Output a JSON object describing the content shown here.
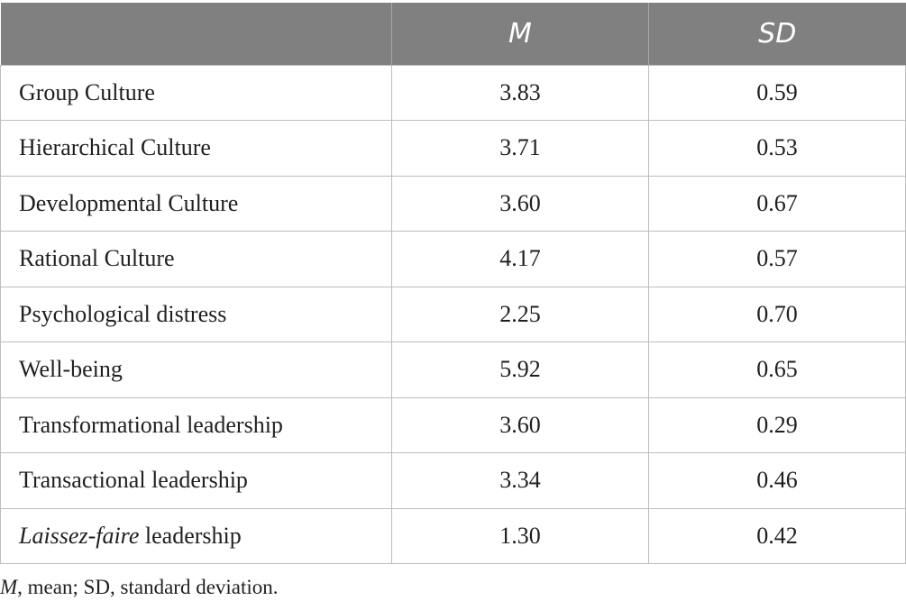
{
  "table": {
    "headers": [
      "",
      "M",
      "SD"
    ],
    "rows": [
      {
        "label": "Group Culture",
        "m": "3.83",
        "sd": "0.59"
      },
      {
        "label": "Hierarchical Culture",
        "m": "3.71",
        "sd": "0.53"
      },
      {
        "label": "Developmental Culture",
        "m": "3.60",
        "sd": "0.67"
      },
      {
        "label": "Rational Culture",
        "m": "4.17",
        "sd": "0.57"
      },
      {
        "label": "Psychological distress",
        "m": "2.25",
        "sd": "0.70"
      },
      {
        "label": "Well-being",
        "m": "5.92",
        "sd": "0.65"
      },
      {
        "label": "Transformational leadership",
        "m": "3.60",
        "sd": "0.29"
      },
      {
        "label": "Transactional leadership",
        "m": "3.34",
        "sd": "0.46"
      },
      {
        "label_italic": "Laissez-faire",
        "label_rest": " leadership",
        "m": "1.30",
        "sd": "0.42"
      }
    ]
  },
  "footnote": {
    "italic_part": "M",
    "rest": ", mean; SD, standard deviation."
  },
  "colors": {
    "header_bg": "#808080",
    "header_text": "#ffffff",
    "border": "#bdbdbd"
  }
}
